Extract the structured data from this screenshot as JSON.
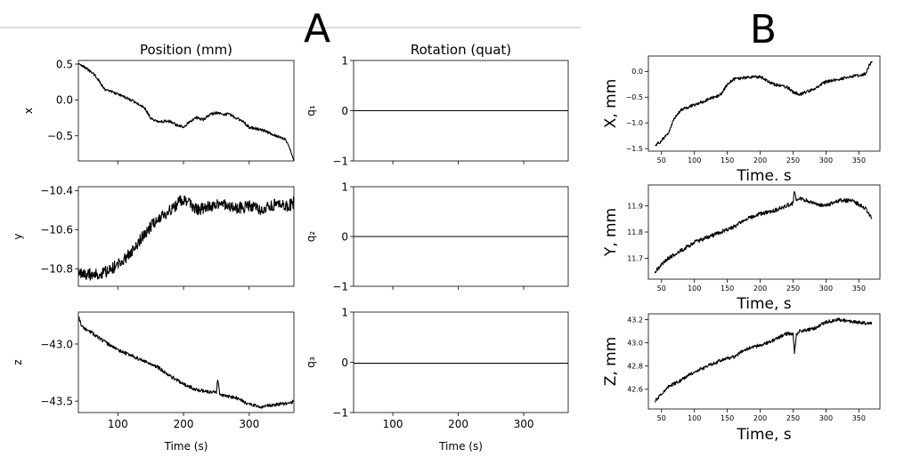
{
  "panel_labels": {
    "a": "A",
    "b": "B"
  },
  "colors": {
    "panel_label": "#1f4aa8",
    "trace": "#000000",
    "divider": "#bbbbbb"
  },
  "panel_a": {
    "col_titles": [
      "Position (mm)",
      "Rotation (quat)"
    ],
    "xlabel": "Time (s)"
  },
  "chart_data": [
    {
      "id": "a-x",
      "type": "line",
      "title": "Position (mm)",
      "ylabel": "x",
      "xlabel": "",
      "xlim": [
        40,
        368
      ],
      "ylim": [
        -0.85,
        0.55
      ],
      "xticks": [
        100,
        200,
        300
      ],
      "xtick_labels": [],
      "yticks": [
        -0.5,
        0.0,
        0.5
      ],
      "ytick_labels": [
        "−0.5",
        "0.0",
        "0.5"
      ],
      "noise": 0.02,
      "seed": 3,
      "series": [
        {
          "x": [
            40,
            50,
            65,
            80,
            100,
            120,
            140,
            150,
            160,
            180,
            190,
            200,
            210,
            220,
            230,
            240,
            250,
            260,
            270,
            280,
            290,
            300,
            320,
            340,
            355,
            360,
            365,
            368
          ],
          "y": [
            0.5,
            0.45,
            0.35,
            0.15,
            0.08,
            0.0,
            -0.1,
            -0.25,
            -0.3,
            -0.3,
            -0.35,
            -0.38,
            -0.3,
            -0.25,
            -0.28,
            -0.2,
            -0.18,
            -0.2,
            -0.2,
            -0.25,
            -0.3,
            -0.38,
            -0.42,
            -0.5,
            -0.55,
            -0.65,
            -0.75,
            -0.85
          ]
        }
      ]
    },
    {
      "id": "a-q1",
      "type": "line",
      "title": "Rotation (quat)",
      "ylabel": "q₁",
      "xlabel": "",
      "xlim": [
        40,
        368
      ],
      "ylim": [
        -1,
        1
      ],
      "xticks": [
        100,
        200,
        300
      ],
      "xtick_labels": [],
      "yticks": [
        -1,
        0,
        1
      ],
      "ytick_labels": [
        "−1",
        "0",
        "1"
      ],
      "noise": 0,
      "seed": 1,
      "series": [
        {
          "x": [
            40,
            368
          ],
          "y": [
            0.0,
            0.0
          ]
        }
      ]
    },
    {
      "id": "a-y",
      "type": "line",
      "title": "",
      "ylabel": "y",
      "xlabel": "",
      "xlim": [
        40,
        368
      ],
      "ylim": [
        -10.89,
        -10.38
      ],
      "xticks": [
        100,
        200,
        300
      ],
      "xtick_labels": [],
      "yticks": [
        -10.8,
        -10.6,
        -10.4
      ],
      "ytick_labels": [
        "−10.8",
        "−10.6",
        "−10.4"
      ],
      "noise": 0.03,
      "seed": 7,
      "series": [
        {
          "x": [
            40,
            60,
            80,
            100,
            120,
            140,
            160,
            180,
            200,
            220,
            240,
            260,
            280,
            300,
            320,
            340,
            360,
            368
          ],
          "y": [
            -10.82,
            -10.83,
            -10.82,
            -10.78,
            -10.72,
            -10.62,
            -10.55,
            -10.5,
            -10.44,
            -10.5,
            -10.48,
            -10.47,
            -10.49,
            -10.48,
            -10.5,
            -10.47,
            -10.48,
            -10.46
          ]
        }
      ]
    },
    {
      "id": "a-q2",
      "type": "line",
      "title": "",
      "ylabel": "q₂",
      "xlabel": "",
      "xlim": [
        40,
        368
      ],
      "ylim": [
        -1,
        1
      ],
      "xticks": [
        100,
        200,
        300
      ],
      "xtick_labels": [],
      "yticks": [
        -1,
        0,
        1
      ],
      "ytick_labels": [
        "−1",
        "0",
        "1"
      ],
      "noise": 0,
      "seed": 1,
      "series": [
        {
          "x": [
            40,
            368
          ],
          "y": [
            0.0,
            0.0
          ]
        }
      ]
    },
    {
      "id": "a-z",
      "type": "line",
      "title": "",
      "ylabel": "z",
      "xlabel": "Time (s)",
      "xlim": [
        40,
        368
      ],
      "ylim": [
        -43.6,
        -42.72
      ],
      "xticks": [
        100,
        200,
        300
      ],
      "xtick_labels": [
        "100",
        "200",
        "300"
      ],
      "yticks": [
        -43.5,
        -43.0
      ],
      "ytick_labels": [
        "−43.5",
        "−43.0"
      ],
      "noise": 0.015,
      "seed": 11,
      "series": [
        {
          "x": [
            40,
            45,
            60,
            80,
            100,
            120,
            140,
            160,
            180,
            200,
            220,
            240,
            250,
            252,
            255,
            260,
            280,
            300,
            320,
            340,
            360,
            368
          ],
          "y": [
            -42.75,
            -42.85,
            -42.9,
            -42.98,
            -43.05,
            -43.1,
            -43.15,
            -43.2,
            -43.28,
            -43.35,
            -43.4,
            -43.42,
            -43.42,
            -43.32,
            -43.43,
            -43.45,
            -43.47,
            -43.53,
            -43.55,
            -43.53,
            -43.52,
            -43.5
          ]
        }
      ]
    },
    {
      "id": "a-q3",
      "type": "line",
      "title": "",
      "ylabel": "q₃",
      "xlabel": "Time (s)",
      "xlim": [
        40,
        368
      ],
      "ylim": [
        -1,
        1
      ],
      "xticks": [
        100,
        200,
        300
      ],
      "xtick_labels": [
        "100",
        "200",
        "300"
      ],
      "yticks": [
        -1,
        0,
        1
      ],
      "ytick_labels": [
        "−1",
        "0",
        "1"
      ],
      "noise": 0,
      "seed": 1,
      "series": [
        {
          "x": [
            40,
            368
          ],
          "y": [
            -0.02,
            -0.02
          ]
        }
      ]
    },
    {
      "id": "b-x",
      "type": "line",
      "title": "",
      "ylabel": "X, mm",
      "xlabel": "Time. s",
      "xlim": [
        30,
        382
      ],
      "ylim": [
        -1.55,
        0.3
      ],
      "xticks": [
        50,
        100,
        150,
        200,
        250,
        300,
        350
      ],
      "xtick_labels": [
        "50",
        "100",
        "150",
        "200",
        "250",
        "300",
        "350"
      ],
      "yticks": [
        -1.5,
        -1.0,
        -0.5,
        0.0
      ],
      "ytick_labels": [
        "−1.5",
        "−1.0",
        "−0.5",
        "0.0"
      ],
      "noise": 0.03,
      "seed": 5,
      "series": [
        {
          "x": [
            40,
            50,
            60,
            70,
            80,
            100,
            120,
            140,
            150,
            160,
            180,
            200,
            220,
            240,
            250,
            260,
            280,
            300,
            320,
            340,
            360,
            365,
            370
          ],
          "y": [
            -1.45,
            -1.35,
            -1.2,
            -0.9,
            -0.75,
            -0.65,
            -0.55,
            -0.45,
            -0.25,
            -0.15,
            -0.12,
            -0.1,
            -0.25,
            -0.3,
            -0.4,
            -0.45,
            -0.35,
            -0.2,
            -0.15,
            -0.1,
            -0.05,
            0.1,
            0.2
          ]
        }
      ]
    },
    {
      "id": "b-y",
      "type": "line",
      "title": "",
      "ylabel": "Y, mm",
      "xlabel": "Time, s",
      "xlim": [
        30,
        382
      ],
      "ylim": [
        11.62,
        11.98
      ],
      "xticks": [
        50,
        100,
        150,
        200,
        250,
        300,
        350
      ],
      "xtick_labels": [
        "50",
        "100",
        "150",
        "200",
        "250",
        "300",
        "350"
      ],
      "yticks": [
        11.7,
        11.8,
        11.9
      ],
      "ytick_labels": [
        "11.7",
        "11.8",
        "11.9"
      ],
      "noise": 0.008,
      "seed": 9,
      "series": [
        {
          "x": [
            40,
            60,
            80,
            100,
            120,
            140,
            160,
            180,
            200,
            220,
            240,
            250,
            252,
            255,
            260,
            280,
            300,
            320,
            340,
            360,
            365,
            370
          ],
          "y": [
            11.65,
            11.7,
            11.73,
            11.76,
            11.78,
            11.8,
            11.82,
            11.85,
            11.87,
            11.88,
            11.9,
            11.91,
            11.96,
            11.92,
            11.93,
            11.91,
            11.9,
            11.92,
            11.92,
            11.89,
            11.87,
            11.85
          ]
        }
      ]
    },
    {
      "id": "b-z",
      "type": "line",
      "title": "",
      "ylabel": "Z, mm",
      "xlabel": "Time, s",
      "xlim": [
        30,
        382
      ],
      "ylim": [
        42.43,
        43.25
      ],
      "xticks": [
        50,
        100,
        150,
        200,
        250,
        300,
        350
      ],
      "xtick_labels": [
        "50",
        "100",
        "150",
        "200",
        "250",
        "300",
        "350"
      ],
      "yticks": [
        42.6,
        42.8,
        43.0,
        43.2
      ],
      "ytick_labels": [
        "42.6",
        "42.8",
        "43.0",
        "43.2"
      ],
      "noise": 0.015,
      "seed": 13,
      "series": [
        {
          "x": [
            40,
            60,
            80,
            100,
            120,
            140,
            160,
            180,
            200,
            220,
            240,
            250,
            252,
            255,
            260,
            280,
            300,
            320,
            340,
            360,
            370
          ],
          "y": [
            42.5,
            42.62,
            42.68,
            42.75,
            42.8,
            42.85,
            42.88,
            42.95,
            42.98,
            43.02,
            43.08,
            43.08,
            42.92,
            43.07,
            43.1,
            43.12,
            43.18,
            43.2,
            43.18,
            43.17,
            43.17
          ]
        }
      ]
    }
  ]
}
